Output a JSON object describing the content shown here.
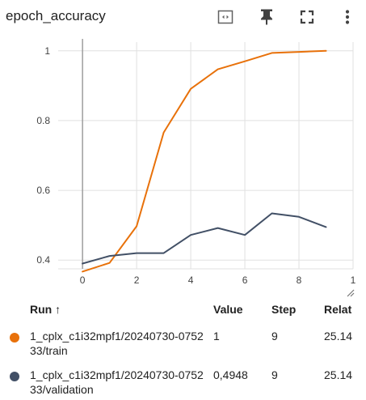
{
  "card": {
    "title": "epoch_accuracy"
  },
  "header_icons": [
    "fit-domain-icon",
    "pin-icon",
    "fullscreen-icon",
    "more-vert-icon"
  ],
  "table": {
    "headers": {
      "run": "Run ↑",
      "value": "Value",
      "step": "Step",
      "relative": "Relat"
    },
    "rows": [
      {
        "name": "1_cplx_c1i32mpf1/20240730-075233/train",
        "value": "1",
        "step": "9",
        "relative": "25.14",
        "color": "#e8710a"
      },
      {
        "name": "1_cplx_c1i32mpf1/20240730-075233/validation",
        "value": "0,4948",
        "step": "9",
        "relative": "25.14",
        "color": "#425066"
      }
    ]
  },
  "chart_data": {
    "type": "line",
    "title": "epoch_accuracy",
    "xlabel": "",
    "ylabel": "",
    "x_ticks": [
      "0",
      "2",
      "4",
      "6",
      "8",
      "1"
    ],
    "y_ticks": [
      "0.4",
      "0.6",
      "0.8",
      "1"
    ],
    "xlim": [
      -0.9,
      10.0
    ],
    "ylim": [
      0.375,
      1.025
    ],
    "grid": true,
    "series": [
      {
        "name": "1_cplx_c1i32mpf1/20240730-075233/train",
        "color": "#e8710a",
        "x": [
          0,
          1,
          2,
          3,
          4,
          5,
          6,
          7,
          8,
          9
        ],
        "y": [
          0.367,
          0.392,
          0.497,
          0.766,
          0.891,
          0.947,
          0.97,
          0.994,
          0.997,
          1.0
        ]
      },
      {
        "name": "1_cplx_c1i32mpf1/20240730-075233/validation",
        "color": "#425066",
        "x": [
          0,
          1,
          2,
          3,
          4,
          5,
          6,
          7,
          8,
          9
        ],
        "y": [
          0.39,
          0.412,
          0.42,
          0.42,
          0.472,
          0.492,
          0.472,
          0.534,
          0.524,
          0.4948
        ]
      }
    ]
  }
}
